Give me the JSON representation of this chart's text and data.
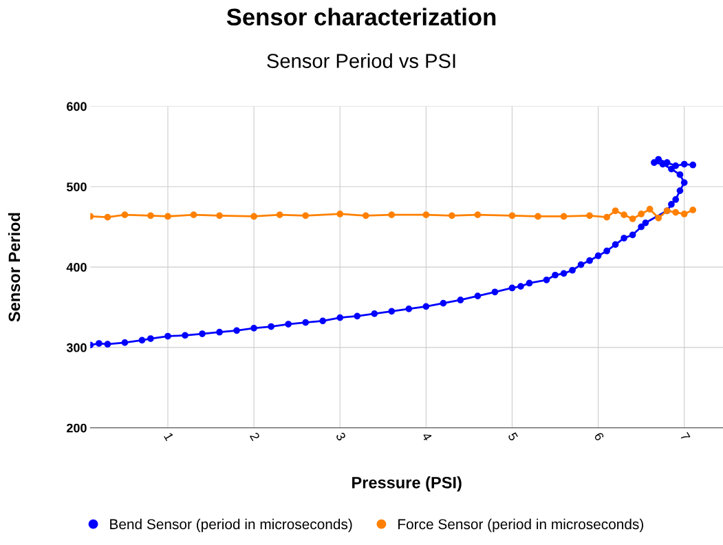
{
  "chart_data": {
    "type": "line",
    "title": "Sensor characterization",
    "subtitle": "Sensor Period vs PSI",
    "xlabel": "Pressure (PSI)",
    "ylabel": "Sensor Period",
    "xlim": [
      0.1,
      7.45
    ],
    "xticks": [
      1,
      2,
      3,
      4,
      5,
      6,
      7
    ],
    "ylim": [
      200,
      600
    ],
    "yticks": [
      200,
      300,
      400,
      500,
      600
    ],
    "grid": true,
    "legend": "bottom",
    "marker": "circle",
    "line_style": "solid",
    "series": [
      {
        "name": "Bend Sensor (period in microseconds)",
        "color": "#0000ff",
        "x": [
          0.1,
          0.2,
          0.3,
          0.5,
          0.7,
          0.8,
          1.0,
          1.2,
          1.4,
          1.6,
          1.8,
          2.0,
          2.2,
          2.4,
          2.6,
          2.8,
          3.0,
          3.2,
          3.4,
          3.6,
          3.8,
          4.0,
          4.2,
          4.4,
          4.6,
          4.8,
          5.0,
          5.1,
          5.2,
          5.4,
          5.5,
          5.6,
          5.7,
          5.8,
          5.9,
          6.0,
          6.1,
          6.2,
          6.3,
          6.4,
          6.5,
          6.55,
          6.8,
          6.85,
          6.9,
          6.95,
          7.0,
          6.95,
          6.85,
          6.75,
          6.65,
          6.7,
          6.8,
          6.9,
          7.0,
          7.1
        ],
        "values": [
          303,
          305,
          304,
          306,
          309,
          311,
          314,
          315,
          317,
          319,
          321,
          324,
          326,
          329,
          331,
          333,
          337,
          339,
          342,
          345,
          348,
          351,
          355,
          359,
          364,
          369,
          374,
          376,
          380,
          384,
          390,
          392,
          396,
          403,
          408,
          414,
          420,
          428,
          436,
          440,
          450,
          455,
          470,
          478,
          484,
          495,
          505,
          515,
          522,
          528,
          530,
          534,
          530,
          526,
          528,
          527
        ]
      },
      {
        "name": "Force Sensor (period in microseconds)",
        "color": "#ff8000",
        "x": [
          0.1,
          0.3,
          0.5,
          0.8,
          1.0,
          1.3,
          1.6,
          2.0,
          2.3,
          2.6,
          3.0,
          3.3,
          3.6,
          4.0,
          4.3,
          4.6,
          5.0,
          5.3,
          5.6,
          5.9,
          6.1,
          6.2,
          6.3,
          6.4,
          6.5,
          6.6,
          6.7,
          6.8,
          6.9,
          7.0,
          7.1
        ],
        "values": [
          463,
          462,
          465,
          464,
          463,
          465,
          464,
          463,
          465,
          464,
          466,
          464,
          465,
          465,
          464,
          465,
          464,
          463,
          463,
          464,
          462,
          470,
          465,
          460,
          466,
          472,
          461,
          470,
          468,
          466,
          471
        ]
      }
    ]
  }
}
